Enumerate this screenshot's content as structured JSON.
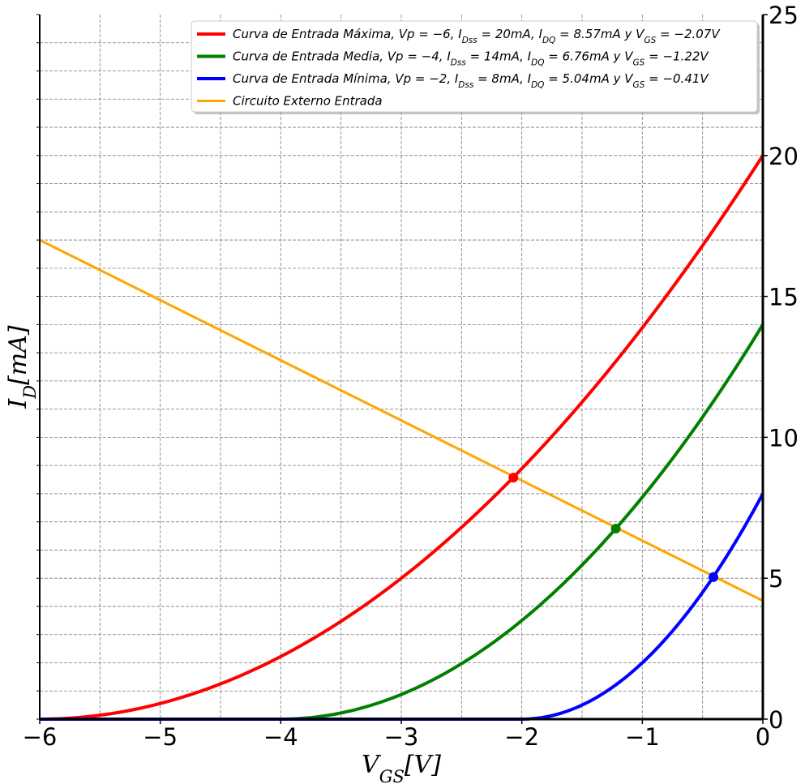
{
  "chart_data": {
    "type": "line",
    "title": "",
    "xlabel": "V_GS[V]",
    "ylabel": "I_D[mA]",
    "xlim": [
      -6,
      0
    ],
    "ylim": [
      0,
      25
    ],
    "x_ticks": [
      -6,
      -5,
      -4,
      -3,
      -2,
      -1,
      0
    ],
    "x_tick_labels": [
      "−6",
      "−5",
      "−4",
      "−3",
      "−2",
      "−1",
      "0"
    ],
    "y_ticks": [
      0,
      5,
      10,
      15,
      20,
      25
    ],
    "y_tick_labels": [
      "0",
      "5",
      "10",
      "15",
      "20",
      "25"
    ],
    "y_axis_side": "right",
    "grid": true,
    "grid_style": "dashed",
    "legend_position": "top-right",
    "series": [
      {
        "name": "Curva de Entrada Máxima,  Vp = −6,  I_Dss = 20mA, I_DQ = 8.57mA y V_GS = −2.07V",
        "color": "#ff0000",
        "type": "transfer-curve",
        "Vp": -6,
        "Idss": 20,
        "Q": {
          "x": -2.07,
          "y": 8.57
        },
        "x": [
          -6,
          -5.5,
          -5,
          -4.5,
          -4,
          -3.5,
          -3,
          -2.5,
          -2,
          -1.5,
          -1,
          -0.5,
          0
        ],
        "y": [
          0,
          0.14,
          0.56,
          1.25,
          2.22,
          3.47,
          5.0,
          6.81,
          8.89,
          11.25,
          13.89,
          16.81,
          20.0
        ]
      },
      {
        "name": "Curva de Entrada Media,  Vp = −4,  I_Dss = 14mA, I_DQ = 6.76mA y V_GS = −1.22V",
        "color": "#008000",
        "type": "transfer-curve",
        "Vp": -4,
        "Idss": 14,
        "Q": {
          "x": -1.22,
          "y": 6.76
        },
        "x": [
          -4,
          -3.5,
          -3,
          -2.5,
          -2,
          -1.5,
          -1,
          -0.5,
          0
        ],
        "y": [
          0,
          0.22,
          0.88,
          1.97,
          3.5,
          5.47,
          7.88,
          10.72,
          14.0
        ]
      },
      {
        "name": "Curva de Entrada Mínima,  Vp = −2,  I_Dss = 8mA, I_DQ = 5.04mA y V_GS = −0.41V",
        "color": "#0000ff",
        "type": "transfer-curve",
        "Vp": -2,
        "Idss": 8,
        "Q": {
          "x": -0.41,
          "y": 5.04
        },
        "x": [
          -2,
          -1.5,
          -1,
          -0.5,
          0
        ],
        "y": [
          0,
          0.5,
          2.0,
          4.5,
          8.0
        ]
      },
      {
        "name": "Circuito Externo Entrada",
        "color": "#ffa500",
        "type": "line",
        "x": [
          -6,
          0
        ],
        "y": [
          17.0,
          4.2
        ]
      }
    ]
  }
}
